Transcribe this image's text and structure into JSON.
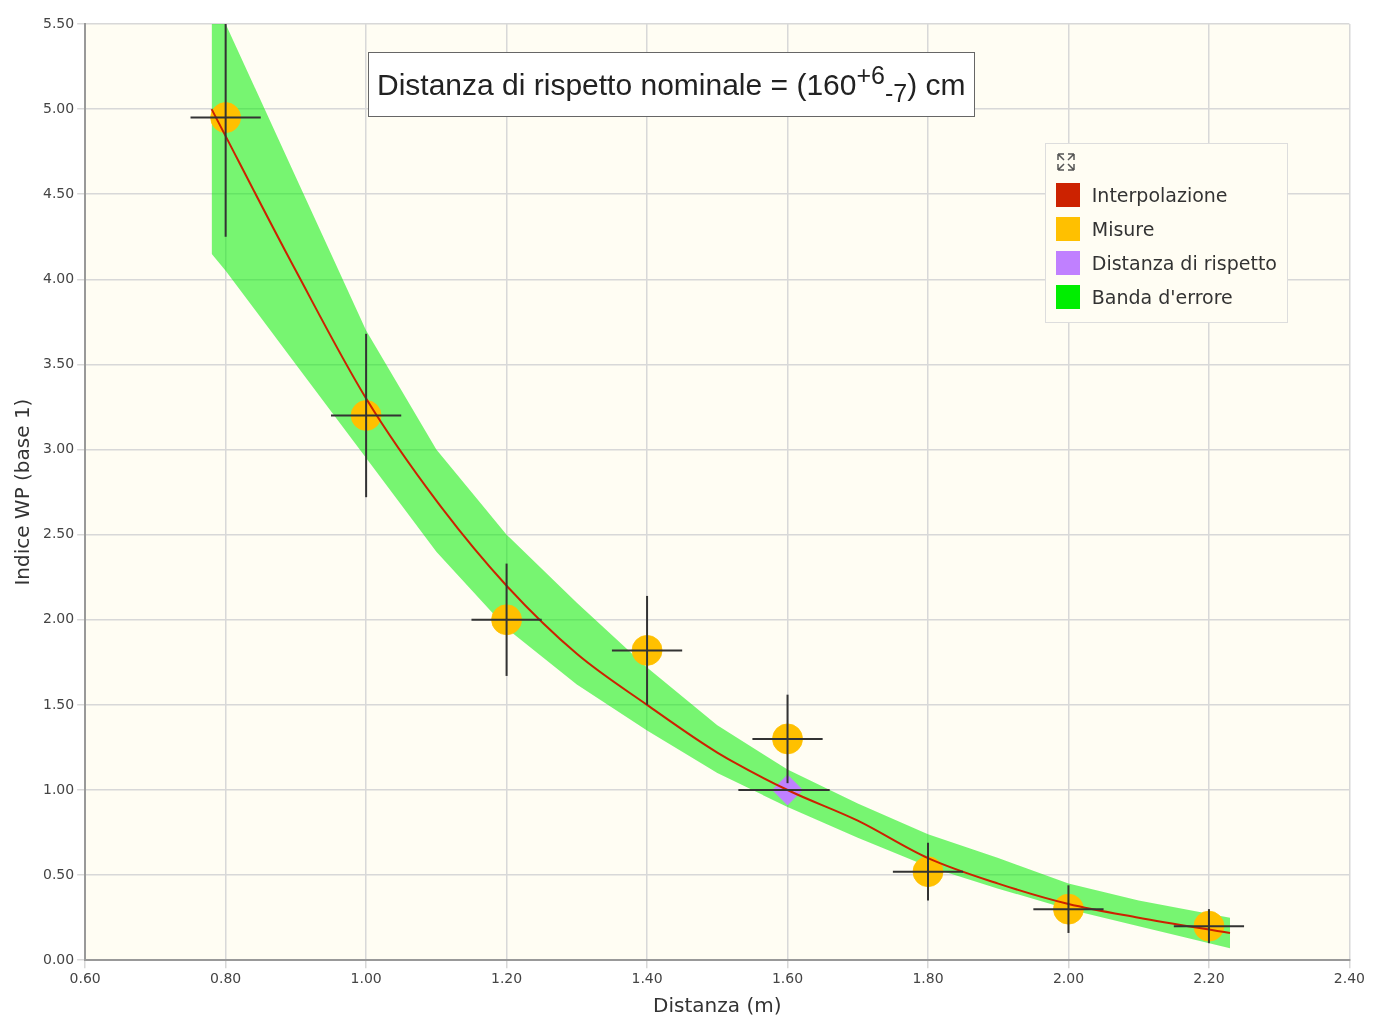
{
  "chart_data": {
    "type": "scatter",
    "title": "Distanza di rispetto nominale = (160$^{+6}$$_{-7}$) cm",
    "xlabel": "Distanza (m)",
    "ylabel": "Indice WP (base 1)",
    "xlim": [
      0.6,
      2.4
    ],
    "xticks": [
      {
        "value": 0.6,
        "label": "0.60"
      },
      {
        "value": 0.8,
        "label": "0.80"
      },
      {
        "value": 1.0,
        "label": "1.00"
      },
      {
        "value": 1.2,
        "label": "1.20"
      },
      {
        "value": 1.4,
        "label": "1.40"
      },
      {
        "value": 1.6,
        "label": "1.60"
      },
      {
        "value": 1.8,
        "label": "1.80"
      },
      {
        "value": 2.0,
        "label": "2.00"
      },
      {
        "value": 2.2,
        "label": "2.20"
      },
      {
        "value": 2.4,
        "label": "2.40"
      }
    ],
    "ylim": [
      0,
      5.5
    ],
    "yticks": [
      {
        "value": 0,
        "label": "0.00"
      },
      {
        "value": 0.5,
        "label": "0.50"
      },
      {
        "value": 1.0,
        "label": "1.00"
      },
      {
        "value": 1.5,
        "label": "1.50"
      },
      {
        "value": 2.0,
        "label": "2.00"
      },
      {
        "value": 2.5,
        "label": "2.50"
      },
      {
        "value": 3.0,
        "label": "3.00"
      },
      {
        "value": 3.5,
        "label": "3.50"
      },
      {
        "value": 4.0,
        "label": "4.00"
      },
      {
        "value": 4.5,
        "label": "4.50"
      },
      {
        "value": 5.0,
        "label": "5.00"
      },
      {
        "value": 5.5,
        "label": "5.50"
      }
    ],
    "grid": true,
    "legend": "top right",
    "series": [
      {
        "name": "Interpolazione",
        "type": "line",
        "color": "#cc2200",
        "marker": "none",
        "x": [
          0.78,
          0.9,
          1.0,
          1.1,
          1.2,
          1.3,
          1.4,
          1.5,
          1.6,
          1.7,
          1.8,
          1.9,
          2.0,
          2.1,
          2.23
        ],
        "values": [
          5.0,
          4.05,
          3.3,
          2.7,
          2.2,
          1.8,
          1.5,
          1.22,
          1.0,
          0.82,
          0.6,
          0.45,
          0.33,
          0.25,
          0.16
        ]
      },
      {
        "name": "Misure",
        "type": "scatter",
        "color": "#ffc000",
        "marker": "circle",
        "x": [
          0.8,
          1.0,
          1.2,
          1.4,
          1.6,
          1.8,
          2.0,
          2.2
        ],
        "values": [
          4.95,
          3.2,
          2.0,
          1.82,
          1.3,
          0.52,
          0.3,
          0.2
        ],
        "errors": [
          [
            4.25,
            5.5
          ],
          0.48,
          0.33,
          0.32,
          0.26,
          0.17,
          0.14,
          0.1
        ],
        "xerrors": [
          0.05,
          0.05,
          0.05,
          0.05,
          0.05,
          0.05,
          0.05,
          0.05
        ]
      },
      {
        "name": "Distanza di rispetto",
        "type": "scatter",
        "color": "#c080ff",
        "marker": "diamond",
        "x": [
          1.6
        ],
        "values": [
          1.0
        ],
        "xerrors": [
          [
            1.53,
            1.66
          ]
        ]
      },
      {
        "name": "Banda d'errore",
        "type": "area",
        "color": "#00ee00",
        "x": [
          0.78,
          0.8,
          0.9,
          1.0,
          1.1,
          1.2,
          1.3,
          1.4,
          1.5,
          1.6,
          1.7,
          1.8,
          1.9,
          2.0,
          2.1,
          2.23
        ],
        "values": [
          null,
          null,
          null,
          null,
          null,
          null,
          null,
          null,
          null,
          null,
          null,
          null,
          null,
          null,
          null,
          null
        ],
        "lower": [
          4.15,
          4.05,
          3.5,
          2.95,
          2.4,
          1.95,
          1.62,
          1.35,
          1.1,
          0.9,
          0.72,
          0.55,
          0.42,
          0.3,
          0.2,
          0.07
        ],
        "upper": [
          5.5,
          5.5,
          4.6,
          3.7,
          3.0,
          2.5,
          2.1,
          1.72,
          1.38,
          1.12,
          0.92,
          0.74,
          0.6,
          0.45,
          0.35,
          0.25
        ]
      }
    ]
  }
}
